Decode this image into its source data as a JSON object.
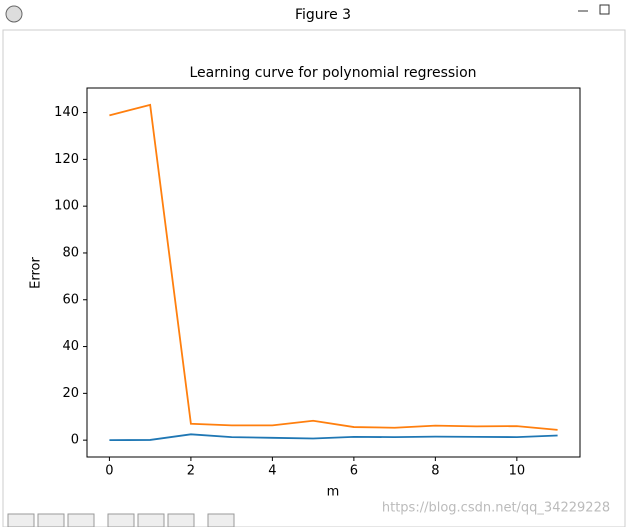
{
  "window": {
    "title": "Figure 3"
  },
  "chart_data": {
    "type": "line",
    "title": "Learning curve for polynomial regression",
    "x_label": "m",
    "y_label": "Error",
    "x": [
      0,
      1,
      2,
      3,
      4,
      5,
      6,
      7,
      8,
      9,
      10,
      11
    ],
    "series": [
      {
        "color": "#1f77b4",
        "values": [
          0.0,
          0.1,
          2.5,
          1.3,
          1.0,
          0.7,
          1.4,
          1.3,
          1.5,
          1.4,
          1.3,
          2.0
        ]
      },
      {
        "color": "#ff7f0e",
        "values": [
          138.8,
          143.3,
          7.0,
          6.3,
          6.3,
          8.3,
          5.6,
          5.3,
          6.2,
          5.9,
          6.0,
          4.4
        ]
      }
    ],
    "xlim": [
      -0.55,
      11.55
    ],
    "ylim": [
      -7.2,
      150.5
    ],
    "xticks": [
      0,
      2,
      4,
      6,
      8,
      10
    ],
    "yticks": [
      0,
      20,
      40,
      60,
      80,
      100,
      120,
      140
    ]
  },
  "watermark": "https://blog.csdn.net/qq_34229228"
}
